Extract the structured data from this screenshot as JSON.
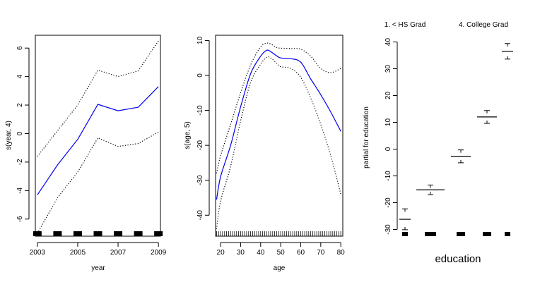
{
  "chart_data": [
    {
      "type": "line",
      "xlabel": "year",
      "ylabel": "s(year, 4)",
      "xlim": [
        2002.9,
        2009.1
      ],
      "ylim": [
        -7.2,
        6.9
      ],
      "xticks": [
        "2003",
        "2005",
        "2007",
        "2009"
      ],
      "xtick_values": [
        2003,
        2005,
        2007,
        2009
      ],
      "yticks": [
        "-6",
        "-4",
        "-2",
        "0",
        "2",
        "4",
        "6"
      ],
      "ytick_values": [
        -6,
        -4,
        -2,
        0,
        2,
        4,
        6
      ],
      "line_color": "#0000ee",
      "series": [
        {
          "role": "fit",
          "x": [
            2003,
            2004,
            2005,
            2006,
            2007,
            2008,
            2009
          ],
          "y": [
            -4.3,
            -2.2,
            -0.4,
            2.05,
            1.6,
            1.85,
            3.3
          ]
        },
        {
          "role": "upper",
          "x": [
            2003,
            2004,
            2005,
            2006,
            2007,
            2008,
            2009
          ],
          "y": [
            -1.6,
            0.2,
            2.0,
            4.45,
            4.0,
            4.4,
            6.5
          ]
        },
        {
          "role": "lower",
          "x": [
            2003,
            2004,
            2005,
            2006,
            2007,
            2008,
            2009
          ],
          "y": [
            -7.0,
            -4.5,
            -2.7,
            -0.3,
            -0.9,
            -0.7,
            0.1
          ]
        }
      ],
      "rug": [
        2003,
        2004,
        2005,
        2006,
        2007,
        2008,
        2009
      ]
    },
    {
      "type": "line",
      "xlabel": "age",
      "ylabel": "s(age, 5)",
      "xlim": [
        17.5,
        81.0
      ],
      "ylim": [
        -46.0,
        11.5
      ],
      "xticks": [
        "20",
        "30",
        "40",
        "50",
        "60",
        "70",
        "80"
      ],
      "xtick_values": [
        20,
        30,
        40,
        50,
        60,
        70,
        80
      ],
      "yticks": [
        "-40",
        "-30",
        "-20",
        "-10",
        "0",
        "10"
      ],
      "ytick_values": [
        -40,
        -30,
        -20,
        -10,
        0,
        10
      ],
      "line_color": "#0000ee",
      "series": [
        {
          "role": "fit",
          "x": [
            18,
            20,
            25,
            30,
            35,
            40,
            43,
            45,
            48,
            50,
            55,
            60,
            65,
            70,
            75,
            80
          ],
          "y": [
            -35.5,
            -29,
            -20,
            -9,
            0.5,
            5.5,
            7.2,
            6.8,
            5.6,
            5.0,
            4.8,
            3.8,
            -1.0,
            -5.5,
            -10.5,
            -16
          ]
        },
        {
          "role": "upper",
          "x": [
            18,
            20,
            25,
            30,
            35,
            40,
            43,
            45,
            48,
            50,
            55,
            60,
            65,
            70,
            75,
            80
          ],
          "y": [
            -28,
            -23,
            -14,
            -5,
            3,
            8.2,
            9.2,
            9.0,
            8.0,
            7.8,
            7.7,
            7.5,
            5.5,
            2.0,
            0.8,
            2.0
          ]
        },
        {
          "role": "lower",
          "x": [
            18,
            20,
            25,
            30,
            35,
            40,
            43,
            45,
            48,
            50,
            55,
            60,
            65,
            70,
            75,
            80
          ],
          "y": [
            -44,
            -36,
            -26,
            -13,
            -2,
            3.2,
            5.2,
            5.0,
            3.5,
            2.5,
            2.0,
            -0.5,
            -6.5,
            -14,
            -23,
            -34
          ]
        }
      ],
      "rug_range": [
        18,
        80
      ]
    },
    {
      "type": "bar",
      "xlabel": "education",
      "ylabel": "partial for education",
      "ylim": [
        -32.5,
        42.5
      ],
      "yticks": [
        "-30",
        "-20",
        "-10",
        "0",
        "10",
        "20",
        "30",
        "40"
      ],
      "ytick_values": [
        -30,
        -20,
        -10,
        0,
        10,
        20,
        30,
        40
      ],
      "top_labels": [
        "1. < HS Grad",
        "4. College Grad"
      ],
      "categories": [
        {
          "index": 1,
          "value": -26.2,
          "upper": -22.3,
          "lower": -30.1,
          "rug_count": 1
        },
        {
          "index": 2,
          "value": -15.2,
          "upper": -13.4,
          "lower": -17.0,
          "rug_count": 3
        },
        {
          "index": 3,
          "value": -2.7,
          "upper": -0.3,
          "lower": -5.1,
          "rug_count": 2
        },
        {
          "index": 4,
          "value": 12.0,
          "upper": 14.4,
          "lower": 9.6,
          "rug_count": 2
        },
        {
          "index": 5,
          "value": 36.5,
          "upper": 39.4,
          "lower": 33.6,
          "rug_count": 1
        }
      ]
    }
  ]
}
